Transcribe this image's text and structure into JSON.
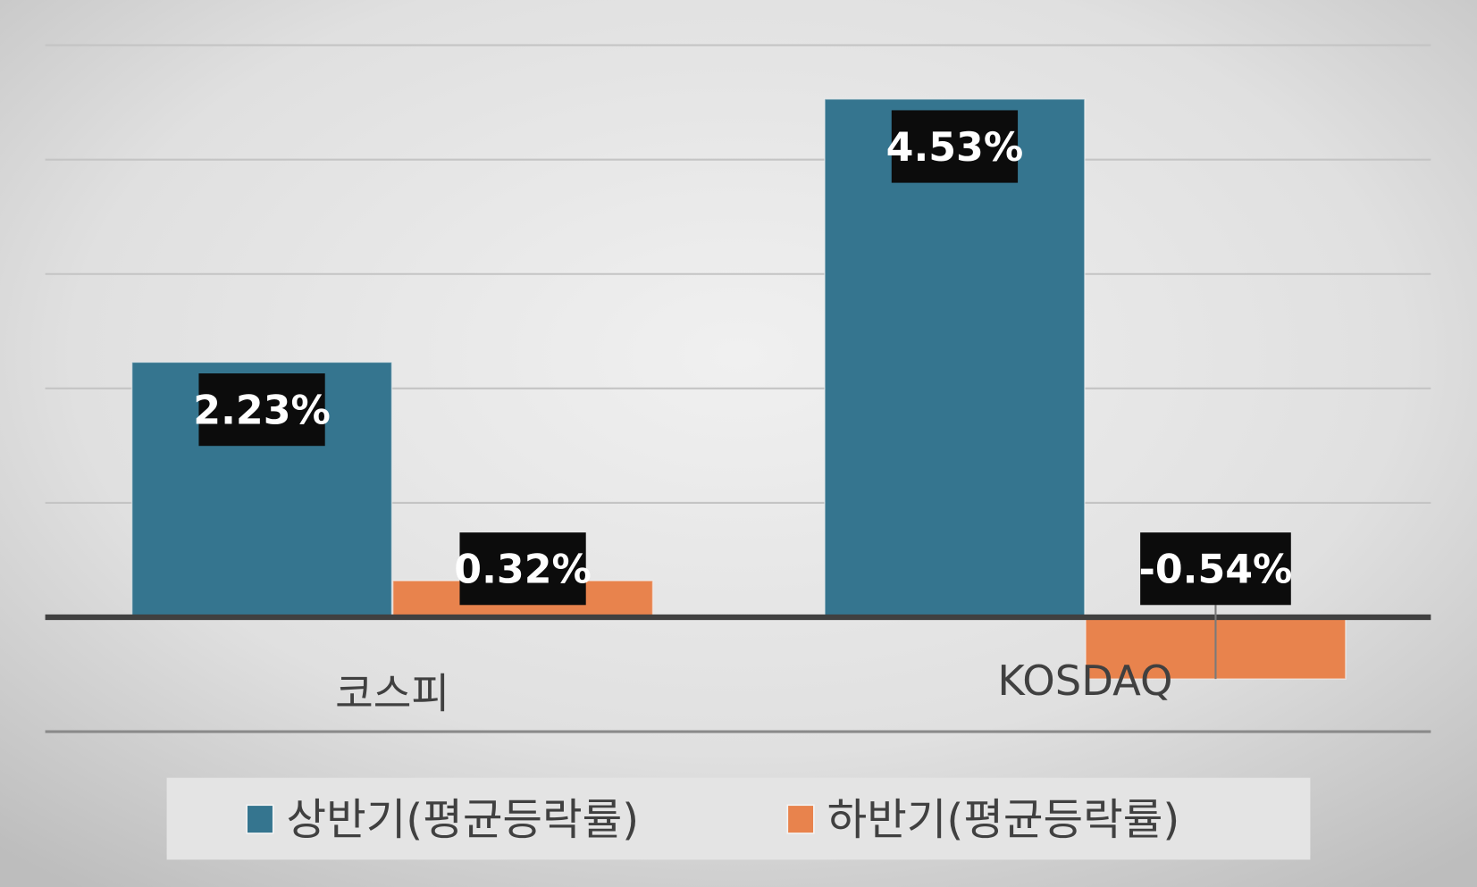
{
  "chart_data": {
    "type": "bar",
    "title": "",
    "xlabel": "",
    "ylabel": "",
    "categories": [
      "코스피",
      "KOSDAQ"
    ],
    "series": [
      {
        "name": "상반기(평균등락률)",
        "values": [
          2.23,
          4.53
        ],
        "labels": [
          "2.23%",
          "4.53%"
        ],
        "color": "#35758f"
      },
      {
        "name": "하반기(평균등락률)",
        "values": [
          0.32,
          -0.54
        ],
        "labels": [
          "0.32%",
          "-0.54%"
        ],
        "color": "#e8834d"
      }
    ],
    "ylim": [
      -1,
      5
    ],
    "ytick_step": 1,
    "y_tick_labels_shown": false,
    "grid": true,
    "legend_position": "bottom",
    "data_label_style": {
      "background": "#0c0c0c",
      "color": "#ffffff"
    }
  }
}
